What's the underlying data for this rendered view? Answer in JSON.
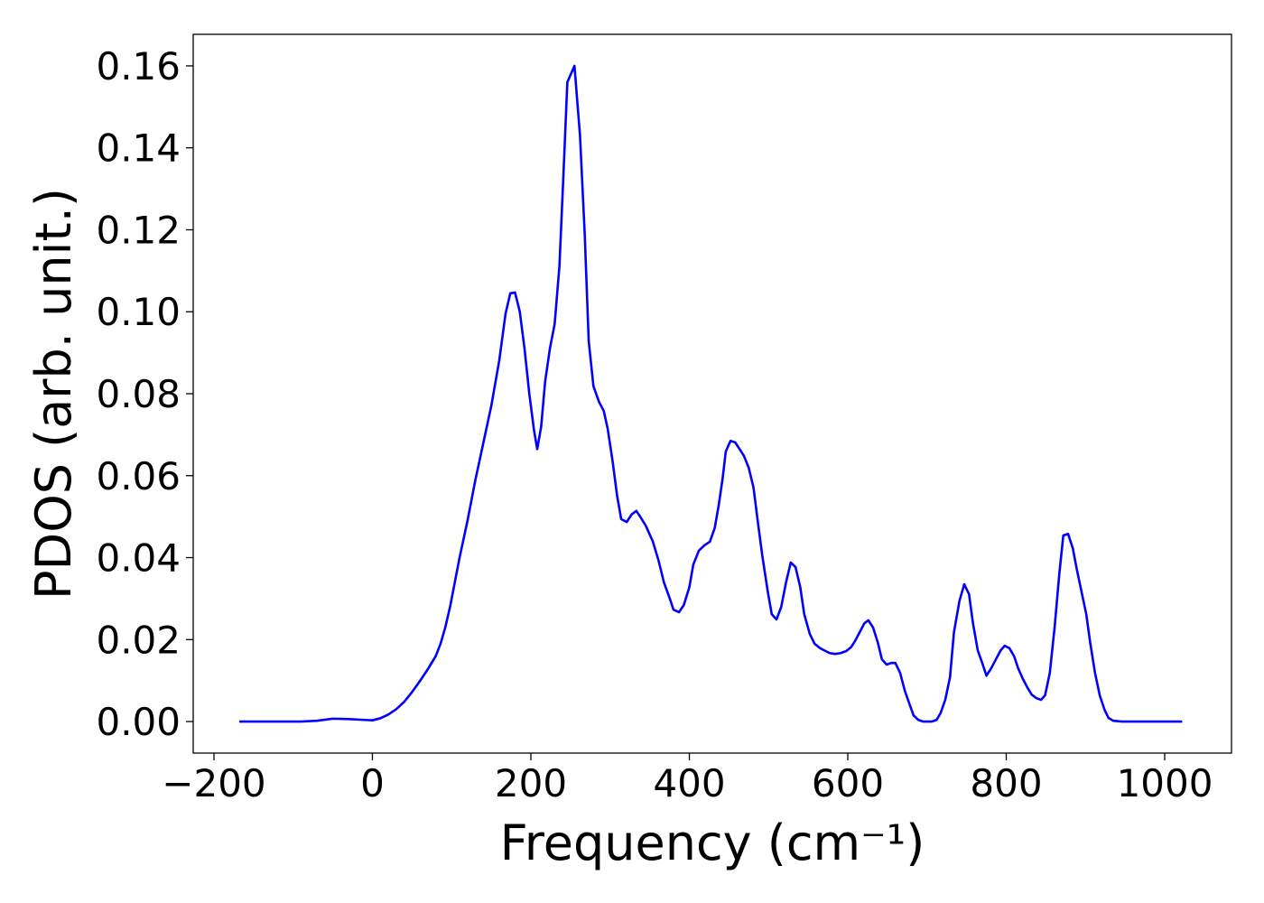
{
  "chart_data": {
    "type": "line",
    "x_label": "Frequency (cm⁻¹)",
    "y_label": "PDOS (arb. unit.)",
    "color": "#0000ff",
    "grid": false,
    "xlim": [
      -226.2,
      1084.3
    ],
    "ylim": [
      -0.0077,
      0.1677
    ],
    "xticks": [
      {
        "value": -200,
        "label": "−200"
      },
      0,
      200,
      400,
      600,
      800,
      1000
    ],
    "yticks": [
      {
        "value": 0,
        "label": "0.00"
      },
      {
        "value": 0.02,
        "label": "0.02"
      },
      {
        "value": 0.04,
        "label": "0.04"
      },
      {
        "value": 0.06,
        "label": "0.06"
      },
      {
        "value": 0.08,
        "label": "0.08"
      },
      {
        "value": 0.1,
        "label": "0.10"
      },
      {
        "value": 0.12,
        "label": "0.12"
      },
      {
        "value": 0.14,
        "label": "0.14"
      },
      {
        "value": 0.16,
        "label": "0.16"
      }
    ],
    "x": [
      -168,
      -120,
      -90,
      -70,
      -50,
      -30,
      -10,
      0,
      10,
      20,
      30,
      40,
      50,
      60,
      70,
      80,
      86,
      92,
      98,
      104,
      110,
      120,
      130,
      140,
      150,
      160,
      168,
      174,
      180,
      186,
      192,
      198,
      204,
      208,
      213,
      218,
      224,
      230,
      236,
      241,
      246,
      255,
      262,
      268,
      273,
      279,
      286,
      292,
      297,
      303,
      309,
      314,
      321,
      327,
      333,
      338,
      345,
      354,
      361,
      368,
      375,
      380,
      387,
      393,
      400,
      405,
      412,
      419,
      426,
      432,
      437,
      442,
      446,
      452,
      458,
      463,
      469,
      475,
      481,
      486,
      492,
      499,
      504,
      510,
      516,
      522,
      528,
      534,
      540,
      545,
      552,
      558,
      565,
      572,
      577,
      584,
      591,
      598,
      604,
      609,
      615,
      621,
      626,
      632,
      638,
      643,
      649,
      655,
      660,
      666,
      672,
      678,
      683,
      689,
      695,
      706,
      712,
      717,
      723,
      729,
      734,
      741,
      747,
      753,
      758,
      764,
      770,
      775,
      781,
      787,
      793,
      798,
      804,
      810,
      815,
      821,
      827,
      832,
      838,
      844,
      849,
      855,
      861,
      867,
      872,
      878,
      884,
      889,
      895,
      901,
      906,
      912,
      918,
      924,
      929,
      935,
      946,
      1022
    ],
    "values": [
      0,
      0,
      0,
      0.0002,
      0.0007,
      0.0006,
      0.0004,
      0.0003,
      0.0008,
      0.0017,
      0.003,
      0.0048,
      0.0072,
      0.0099,
      0.0128,
      0.016,
      0.019,
      0.023,
      0.028,
      0.034,
      0.04,
      0.049,
      0.059,
      0.068,
      0.077,
      0.088,
      0.0995,
      0.1045,
      0.1047,
      0.1,
      0.091,
      0.08,
      0.071,
      0.0665,
      0.072,
      0.083,
      0.091,
      0.097,
      0.111,
      0.133,
      0.156,
      0.16,
      0.143,
      0.1188,
      0.0928,
      0.0818,
      0.078,
      0.0758,
      0.0714,
      0.0637,
      0.0549,
      0.0494,
      0.0487,
      0.0505,
      0.0514,
      0.05,
      0.0478,
      0.0439,
      0.0394,
      0.0339,
      0.0302,
      0.0273,
      0.0267,
      0.0284,
      0.0328,
      0.0383,
      0.0417,
      0.043,
      0.0439,
      0.0472,
      0.0527,
      0.0593,
      0.0659,
      0.0685,
      0.0681,
      0.0666,
      0.0648,
      0.0619,
      0.0571,
      0.0494,
      0.0406,
      0.0317,
      0.0262,
      0.0249,
      0.028,
      0.0339,
      0.0388,
      0.0377,
      0.0328,
      0.0262,
      0.0214,
      0.019,
      0.0179,
      0.0172,
      0.0167,
      0.0165,
      0.0167,
      0.0172,
      0.0181,
      0.0196,
      0.0218,
      0.024,
      0.0247,
      0.0229,
      0.0192,
      0.0152,
      0.0139,
      0.0143,
      0.0143,
      0.0119,
      0.0075,
      0.0042,
      0.0015,
      0.0004,
      0,
      0,
      0.0004,
      0.002,
      0.0053,
      0.0108,
      0.0218,
      0.0295,
      0.0335,
      0.0311,
      0.024,
      0.0174,
      0.0141,
      0.0112,
      0.013,
      0.0152,
      0.0174,
      0.0185,
      0.0179,
      0.0159,
      0.013,
      0.0104,
      0.0082,
      0.0066,
      0.0057,
      0.0053,
      0.0064,
      0.0119,
      0.0229,
      0.0361,
      0.0454,
      0.0458,
      0.0423,
      0.0372,
      0.0317,
      0.0262,
      0.0192,
      0.0119,
      0.0064,
      0.0029,
      0.0009,
      0.0002,
      0,
      0
    ]
  }
}
